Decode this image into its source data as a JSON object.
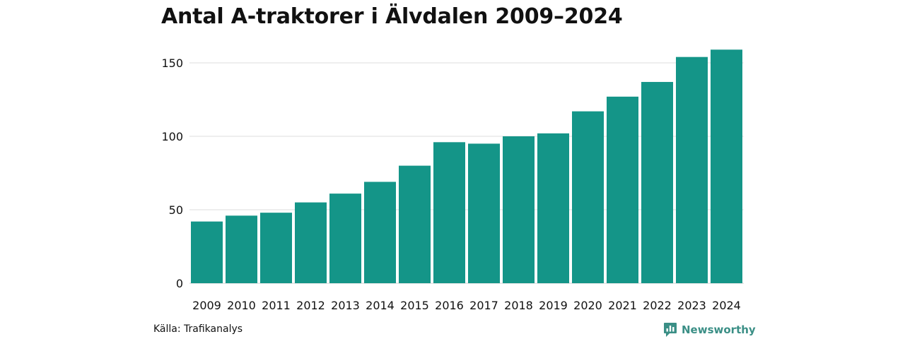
{
  "chart_data": {
    "type": "bar",
    "title": "Antal A-traktorer i Älvdalen 2009–2024",
    "categories": [
      "2009",
      "2010",
      "2011",
      "2012",
      "2013",
      "2014",
      "2015",
      "2016",
      "2017",
      "2018",
      "2019",
      "2020",
      "2021",
      "2022",
      "2023",
      "2024"
    ],
    "values": [
      42,
      46,
      48,
      55,
      61,
      69,
      80,
      96,
      95,
      100,
      102,
      117,
      127,
      137,
      154,
      159
    ],
    "xlabel": "",
    "ylabel": "",
    "ylim": [
      0,
      165
    ],
    "yticks": [
      0,
      50,
      100,
      150
    ],
    "grid": true,
    "bar_color": "#149588",
    "grid_color": "#dcdcdc"
  },
  "footer": {
    "source": "Källa: Trafikanalys",
    "brand": "Newsworthy",
    "brand_icon": "newsworthy-logo-icon",
    "brand_color": "#3b8f86"
  }
}
